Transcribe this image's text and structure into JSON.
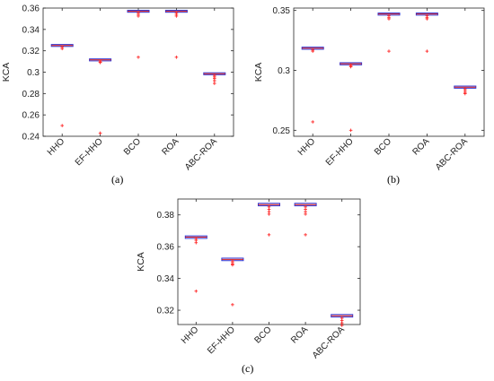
{
  "chart_data": [
    {
      "type": "box",
      "caption": "(a)",
      "title": "",
      "xlabel": "",
      "ylabel": "KCA",
      "categories": [
        "HHO",
        "EF-HHO",
        "BCO",
        "ROA",
        "ABC-ROA"
      ],
      "ylim": [
        0.24,
        0.36
      ],
      "yticks": [
        0.24,
        0.26,
        0.28,
        0.3,
        0.32,
        0.34,
        0.36
      ],
      "ytick_labels": [
        "0.24",
        "0.26",
        "0.28",
        "0.3",
        "0.32",
        "0.34",
        "0.36"
      ],
      "boxes": [
        {
          "q1": 0.3245,
          "median": 0.325,
          "q3": 0.3255,
          "outliers": [
            0.3235,
            0.322,
            0.25
          ]
        },
        {
          "q1": 0.311,
          "median": 0.3115,
          "q3": 0.312,
          "outliers": [
            0.3105,
            0.3095,
            0.309,
            0.243
          ]
        },
        {
          "q1": 0.3565,
          "median": 0.357,
          "q3": 0.3575,
          "outliers": [
            0.3555,
            0.354,
            0.3525,
            0.314
          ]
        },
        {
          "q1": 0.3565,
          "median": 0.357,
          "q3": 0.3575,
          "outliers": [
            0.3555,
            0.354,
            0.3525,
            0.314
          ]
        },
        {
          "q1": 0.298,
          "median": 0.2985,
          "q3": 0.299,
          "outliers": [
            0.297,
            0.2955,
            0.294,
            0.292,
            0.2895
          ]
        }
      ],
      "grid": false,
      "legend": "none"
    },
    {
      "type": "box",
      "caption": "(b)",
      "title": "",
      "xlabel": "",
      "ylabel": "KCA",
      "categories": [
        "HHO",
        "EF-HHO",
        "BCO",
        "ROA",
        "ABC-ROA"
      ],
      "ylim": [
        0.245,
        0.352
      ],
      "yticks": [
        0.25,
        0.3,
        0.35
      ],
      "ytick_labels": [
        "0.25",
        "0.3",
        "0.35"
      ],
      "boxes": [
        {
          "q1": 0.318,
          "median": 0.3185,
          "q3": 0.319,
          "outliers": [
            0.317,
            0.316,
            0.257
          ]
        },
        {
          "q1": 0.305,
          "median": 0.3055,
          "q3": 0.306,
          "outliers": [
            0.3045,
            0.3035,
            0.303,
            0.25
          ]
        },
        {
          "q1": 0.3465,
          "median": 0.347,
          "q3": 0.3475,
          "outliers": [
            0.3455,
            0.344,
            0.343,
            0.316
          ]
        },
        {
          "q1": 0.3465,
          "median": 0.347,
          "q3": 0.3475,
          "outliers": [
            0.3455,
            0.344,
            0.343,
            0.316
          ]
        },
        {
          "q1": 0.2855,
          "median": 0.286,
          "q3": 0.2865,
          "outliers": [
            0.2845,
            0.283,
            0.2815,
            0.2805
          ]
        }
      ],
      "grid": false,
      "legend": "none"
    },
    {
      "type": "box",
      "caption": "(c)",
      "title": "",
      "xlabel": "",
      "ylabel": "KCA",
      "categories": [
        "HHO",
        "EF-HHO",
        "BCO",
        "ROA",
        "ABC-ROA"
      ],
      "ylim": [
        0.311,
        0.39
      ],
      "yticks": [
        0.32,
        0.34,
        0.36,
        0.38
      ],
      "ytick_labels": [
        "0.32",
        "0.34",
        "0.36",
        "0.38"
      ],
      "boxes": [
        {
          "q1": 0.3655,
          "median": 0.366,
          "q3": 0.3665,
          "outliers": [
            0.365,
            0.364,
            0.3625,
            0.332
          ]
        },
        {
          "q1": 0.3515,
          "median": 0.352,
          "q3": 0.3525,
          "outliers": [
            0.351,
            0.35,
            0.349,
            0.3485,
            0.3235
          ]
        },
        {
          "q1": 0.386,
          "median": 0.3865,
          "q3": 0.387,
          "outliers": [
            0.385,
            0.3835,
            0.382,
            0.3805,
            0.3675
          ]
        },
        {
          "q1": 0.386,
          "median": 0.3865,
          "q3": 0.387,
          "outliers": [
            0.385,
            0.3835,
            0.382,
            0.3805,
            0.3675
          ]
        },
        {
          "q1": 0.316,
          "median": 0.3165,
          "q3": 0.317,
          "outliers": [
            0.315,
            0.3135,
            0.312,
            0.3105
          ]
        }
      ],
      "grid": false,
      "legend": "none"
    }
  ],
  "colors": {
    "box": "#2b35d6",
    "median": "#d81b1b",
    "outlier": "#ff2a2a",
    "axis": "#262626",
    "text": "#222222"
  }
}
